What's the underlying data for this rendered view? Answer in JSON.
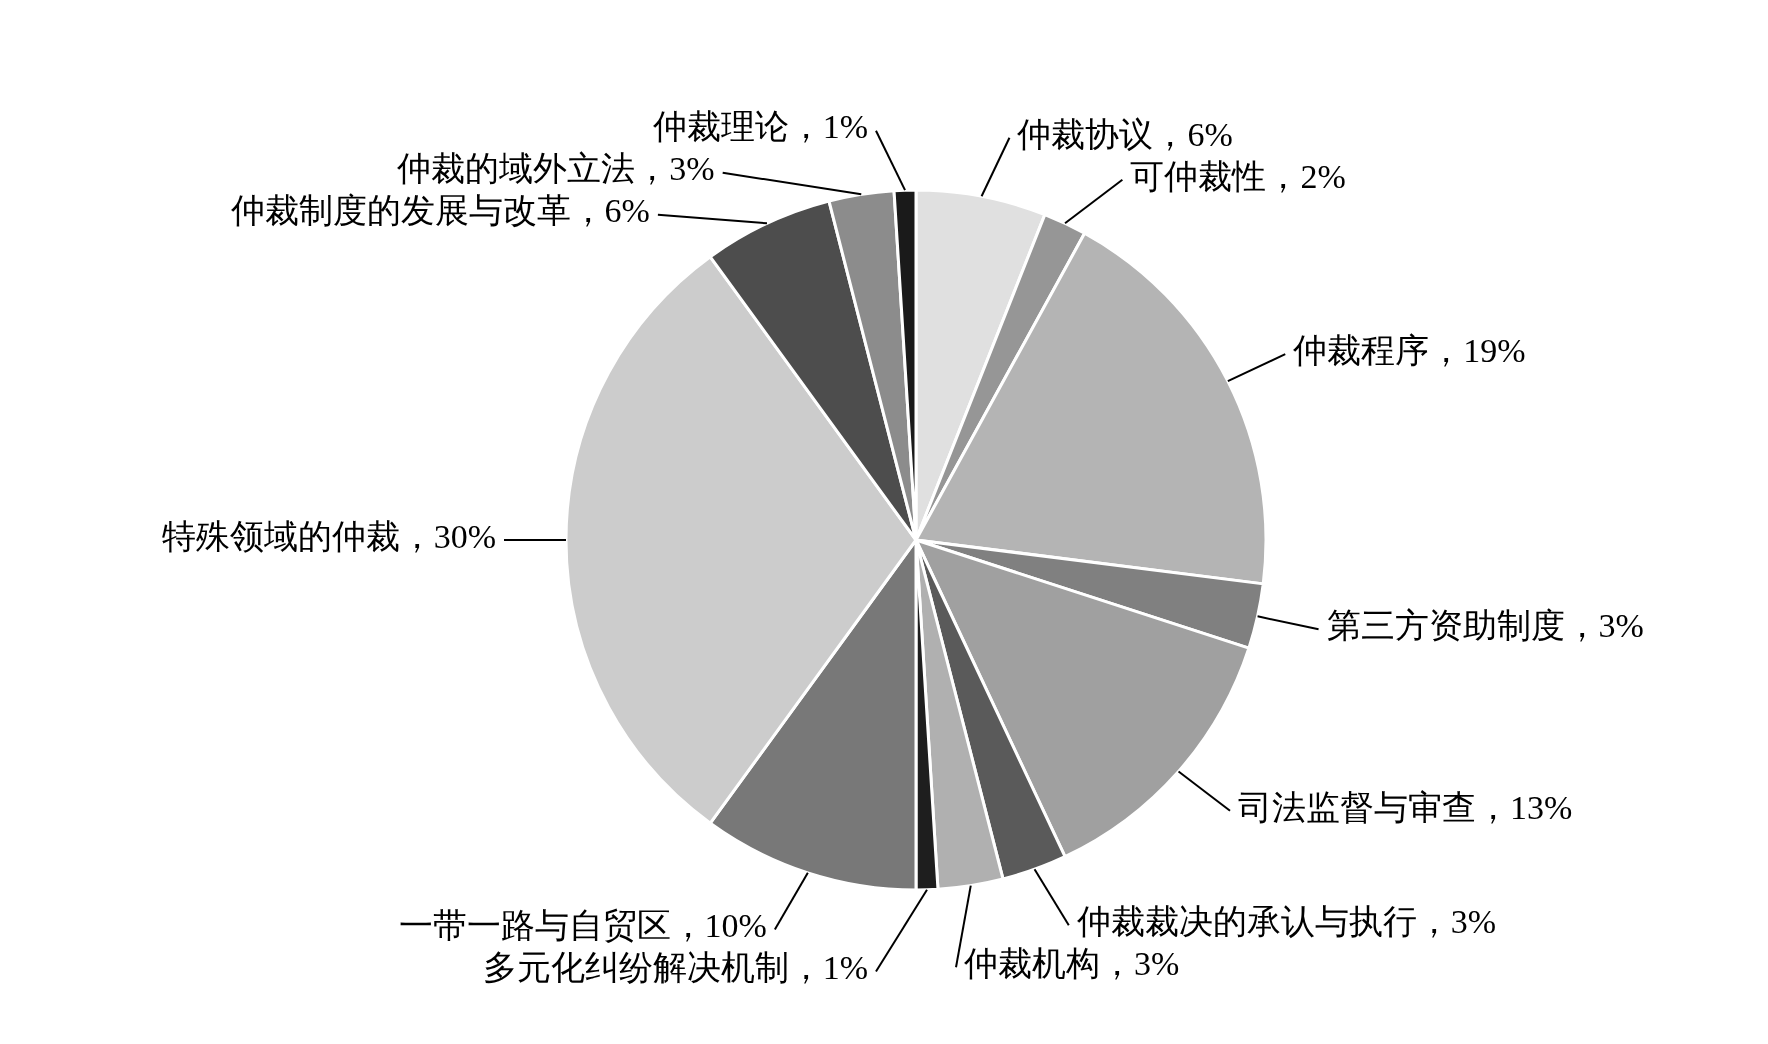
{
  "chart_data": {
    "type": "pie",
    "categories": [
      "仲裁协议，6%",
      "可仲裁性，2%",
      "仲裁程序，19%",
      "第三方资助制度，3%",
      "司法监督与审查，13%",
      "仲裁裁决的承认与执行，3%",
      "仲裁机构，3%",
      "多元化纠纷解决机制，1%",
      "一带一路与自贸区，10%",
      "特殊领域的仲裁，30%",
      "仲裁制度的发展与改革，6%",
      "仲裁的域外立法，3%",
      "仲裁理论，1%"
    ],
    "values": [
      6,
      2,
      19,
      3,
      13,
      3,
      3,
      1,
      10,
      30,
      6,
      3,
      1
    ],
    "colors": [
      "#e0e0e0",
      "#969696",
      "#b4b4b4",
      "#808080",
      "#a0a0a0",
      "#5a5a5a",
      "#b0b0b0",
      "#1e1e1e",
      "#787878",
      "#cccccc",
      "#4d4d4d",
      "#8c8c8c",
      "#1a1a1a"
    ]
  }
}
